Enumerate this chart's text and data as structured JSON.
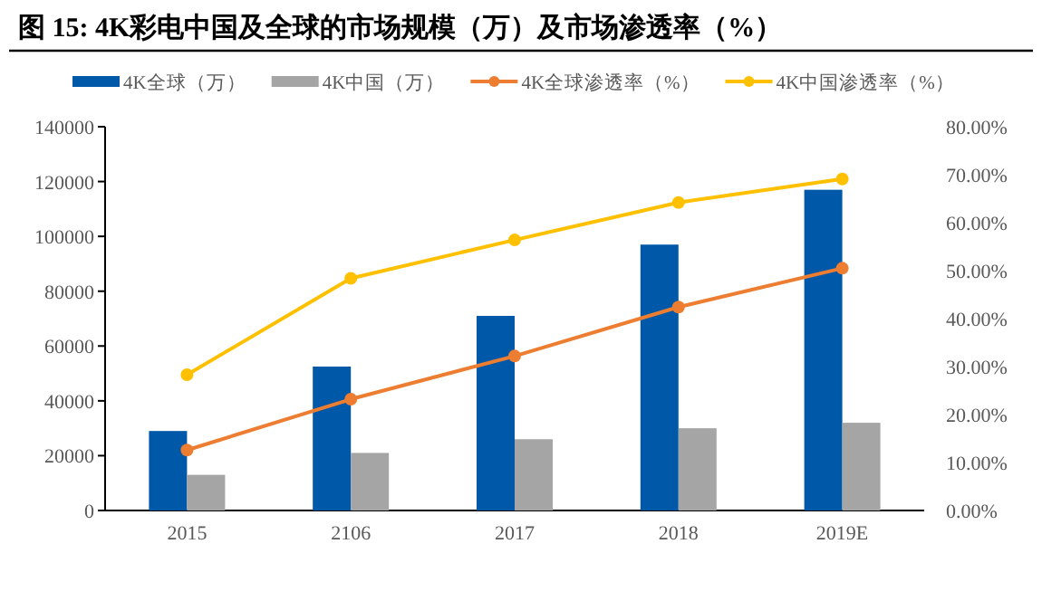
{
  "chart_data": {
    "type": "bar",
    "title": "图 15: 4K彩电中国及全球的市场规模（万）及市场渗透率（%）",
    "categories": [
      "2015",
      "2106",
      "2017",
      "2018",
      "2019E"
    ],
    "series": [
      {
        "name": "4K全球（万）",
        "color": "#0058a8",
        "values": [
          29000,
          52500,
          71000,
          97000,
          117000
        ]
      },
      {
        "name": "4K中国（万）",
        "color": "#a5a5a5",
        "values": [
          13000,
          21000,
          26000,
          30000,
          32000
        ]
      },
      {
        "name": "4K全球渗透率（%）",
        "type": "line",
        "axis": "y2",
        "color": "#ed7d31",
        "values": [
          12.6,
          23.2,
          32.2,
          42.4,
          50.5
        ]
      },
      {
        "name": "4K中国渗透率（%）",
        "type": "line",
        "axis": "y2",
        "color": "#ffc000",
        "values": [
          28.3,
          48.4,
          56.4,
          64.2,
          69.1
        ]
      }
    ],
    "ylim": [
      0,
      140000
    ],
    "yticks": [
      0,
      20000,
      40000,
      60000,
      80000,
      100000,
      120000,
      140000
    ],
    "y2lim": [
      0,
      80
    ],
    "y2ticks": [
      {
        "value": 0,
        "label": "0.00%"
      },
      {
        "value": 10,
        "label": "10.00%"
      },
      {
        "value": 20,
        "label": "20.00%"
      },
      {
        "value": 30,
        "label": "30.00%"
      },
      {
        "value": 40,
        "label": "40.00%"
      },
      {
        "value": 50,
        "label": "50.00%"
      },
      {
        "value": 60,
        "label": "60.00%"
      },
      {
        "value": 70,
        "label": "70.00%"
      },
      {
        "value": 80,
        "label": "80.00%"
      }
    ],
    "legend": "top",
    "marker": "circle",
    "grid": false
  }
}
